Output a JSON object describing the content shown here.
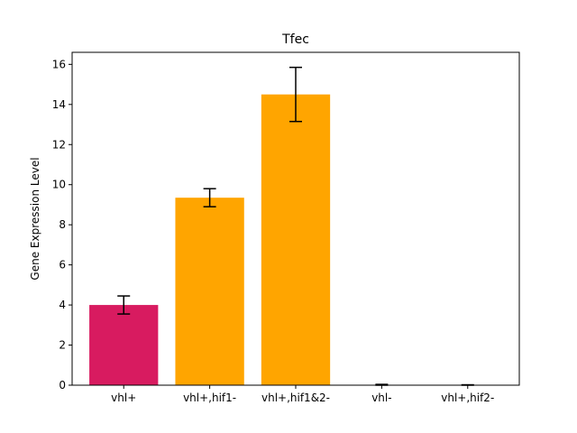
{
  "chart_data": {
    "type": "bar",
    "title": "Tfec",
    "xlabel": "",
    "ylabel": "Gene Expression Level",
    "categories": [
      "vhl+",
      "vhl+,hif1-",
      "vhl+,hif1&2-",
      "vhl-",
      "vhl+,hif2-"
    ],
    "values": [
      4.0,
      9.35,
      14.5,
      0.0,
      0.0
    ],
    "errors": [
      0.45,
      0.45,
      1.35,
      0.04,
      0.02
    ],
    "colors": [
      "#d81b60",
      "#ffa500",
      "#ffa500",
      "#ffa500",
      "#ffa500"
    ],
    "ylim": [
      0,
      16.6
    ],
    "yticks": [
      "0",
      "2",
      "4",
      "6",
      "8",
      "10",
      "12",
      "14",
      "16"
    ],
    "grid": false,
    "legend": "none"
  }
}
